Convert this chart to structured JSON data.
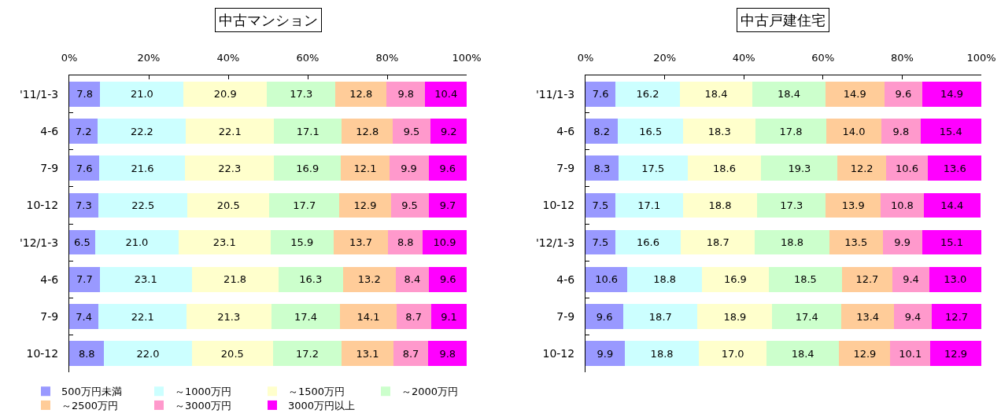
{
  "chart_data": [
    {
      "type": "bar",
      "orientation": "horizontal",
      "stacked": true,
      "title": "中古マンション",
      "categories": [
        "'11/1-3",
        "4-6",
        "7-9",
        "10-12",
        "'12/1-3",
        "4-6",
        "7-9",
        "10-12"
      ],
      "xlim": [
        0,
        100
      ],
      "xticks": [
        {
          "value": 0,
          "label": "0%"
        },
        {
          "value": 20,
          "label": "20%"
        },
        {
          "value": 40,
          "label": "40%"
        },
        {
          "value": 60,
          "label": "60%"
        },
        {
          "value": 80,
          "label": "80%"
        },
        {
          "value": 100,
          "label": "100%"
        }
      ],
      "legend": "bottom",
      "series": [
        {
          "name": "500万円未満",
          "color": "#9999ff",
          "values": [
            7.8,
            7.2,
            7.6,
            7.3,
            6.5,
            7.7,
            7.4,
            8.8
          ],
          "value_labels": [
            "7.8",
            "7.2",
            "7.6",
            "7.3",
            "6.5",
            "7.7",
            "7.4",
            "8.8"
          ]
        },
        {
          "name": "～1000万円",
          "color": "#ccffff",
          "values": [
            21.0,
            22.2,
            21.6,
            22.5,
            21.0,
            23.1,
            22.1,
            22.0
          ],
          "value_labels": [
            "21.0",
            "22.2",
            "21.6",
            "22.5",
            "21.0",
            "23.1",
            "22.1",
            "22.0"
          ]
        },
        {
          "name": "～1500万円",
          "color": "#ffffcc",
          "values": [
            20.9,
            22.1,
            22.3,
            20.5,
            23.1,
            21.8,
            21.3,
            20.5
          ],
          "value_labels": [
            "20.9",
            "22.1",
            "22.3",
            "20.5",
            "23.1",
            "21.8",
            "21.3",
            "20.5"
          ]
        },
        {
          "name": "～2000万円",
          "color": "#ccffcc",
          "values": [
            17.3,
            17.1,
            16.9,
            17.7,
            15.9,
            16.3,
            17.4,
            17.2
          ],
          "value_labels": [
            "17.3",
            "17.1",
            "16.9",
            "17.7",
            "15.9",
            "16.3",
            "17.4",
            "17.2"
          ]
        },
        {
          "name": "～2500万円",
          "color": "#ffcc99",
          "values": [
            12.8,
            12.8,
            12.1,
            12.9,
            13.7,
            13.2,
            14.1,
            13.1
          ],
          "value_labels": [
            "12.8",
            "12.8",
            "12.1",
            "12.9",
            "13.7",
            "13.2",
            "14.1",
            "13.1"
          ]
        },
        {
          "name": "～3000万円",
          "color": "#ff99cc",
          "values": [
            9.8,
            9.5,
            9.9,
            9.5,
            8.8,
            8.4,
            8.7,
            8.7
          ],
          "value_labels": [
            "9.8",
            "9.5",
            "9.9",
            "9.5",
            "8.8",
            "8.4",
            "8.7",
            "8.7"
          ]
        },
        {
          "name": "3000万円以上",
          "color": "#ff00ff",
          "values": [
            10.4,
            9.2,
            9.6,
            9.7,
            10.9,
            9.6,
            9.1,
            9.8
          ],
          "value_labels": [
            "10.4",
            "9.2",
            "9.6",
            "9.7",
            "10.9",
            "9.6",
            "9.1",
            "9.8"
          ]
        }
      ]
    },
    {
      "type": "bar",
      "orientation": "horizontal",
      "stacked": true,
      "title": "中古戸建住宅",
      "categories": [
        "'11/1-3",
        "4-6",
        "7-9",
        "10-12",
        "'12/1-3",
        "4-6",
        "7-9",
        "10-12"
      ],
      "xlim": [
        0,
        100
      ],
      "xticks": [
        {
          "value": 0,
          "label": "0%"
        },
        {
          "value": 20,
          "label": "20%"
        },
        {
          "value": 40,
          "label": "40%"
        },
        {
          "value": 60,
          "label": "60%"
        },
        {
          "value": 80,
          "label": "80%"
        },
        {
          "value": 100,
          "label": "100%"
        }
      ],
      "series": [
        {
          "color": "#9999ff",
          "values": [
            7.6,
            8.2,
            8.3,
            7.5,
            7.5,
            10.6,
            9.6,
            9.9
          ],
          "value_labels": [
            "7.6",
            "8.2",
            "8.3",
            "7.5",
            "7.5",
            "10.6",
            "9.6",
            "9.9"
          ]
        },
        {
          "color": "#ccffff",
          "values": [
            16.2,
            16.5,
            17.5,
            17.1,
            16.6,
            18.8,
            18.7,
            18.8
          ],
          "value_labels": [
            "16.2",
            "16.5",
            "17.5",
            "17.1",
            "16.6",
            "18.8",
            "18.7",
            "18.8"
          ]
        },
        {
          "color": "#ffffcc",
          "values": [
            18.4,
            18.3,
            18.6,
            18.8,
            18.7,
            16.9,
            18.9,
            17.0
          ],
          "value_labels": [
            "18.4",
            "18.3",
            "18.6",
            "18.8",
            "18.7",
            "16.9",
            "18.9",
            "17.0"
          ]
        },
        {
          "color": "#ccffcc",
          "values": [
            18.4,
            17.8,
            19.3,
            17.3,
            18.8,
            18.5,
            17.4,
            18.4
          ],
          "value_labels": [
            "18.4",
            "17.8",
            "19.3",
            "17.3",
            "18.8",
            "18.5",
            "17.4",
            "18.4"
          ]
        },
        {
          "color": "#ffcc99",
          "values": [
            14.9,
            14.0,
            12.2,
            13.9,
            13.5,
            12.7,
            13.4,
            12.9
          ],
          "value_labels": [
            "14.9",
            "14.0",
            "12.2",
            "13.9",
            "13.5",
            "12.7",
            "13.4",
            "12.9"
          ]
        },
        {
          "color": "#ff99cc",
          "values": [
            9.6,
            9.8,
            10.6,
            10.8,
            9.9,
            9.4,
            9.4,
            10.1
          ],
          "value_labels": [
            "9.6",
            "9.8",
            "10.6",
            "10.8",
            "9.9",
            "9.4",
            "9.4",
            "10.1"
          ]
        },
        {
          "color": "#ff00ff",
          "values": [
            14.9,
            15.4,
            13.6,
            14.4,
            15.1,
            13.0,
            12.7,
            12.9
          ],
          "value_labels": [
            "14.9",
            "15.4",
            "13.6",
            "14.4",
            "15.1",
            "13.0",
            "12.7",
            "12.9"
          ]
        }
      ]
    }
  ]
}
